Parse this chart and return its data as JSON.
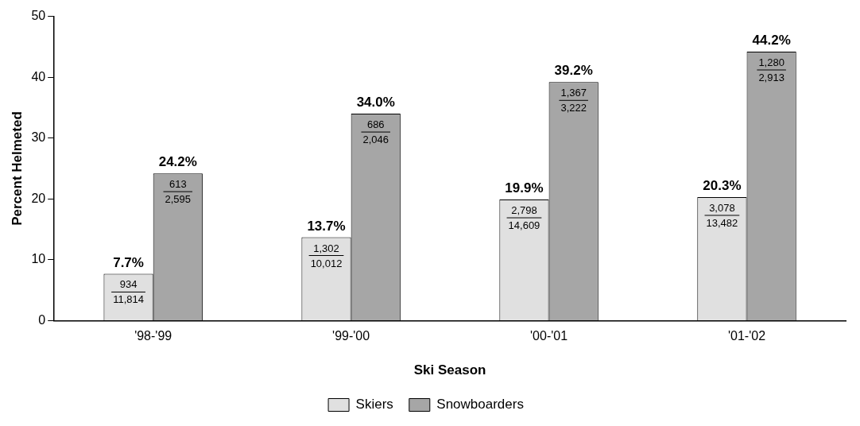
{
  "chart_data": {
    "type": "bar",
    "xlabel": "Ski Season",
    "ylabel": "Percent Helmeted",
    "categories": [
      "'98-'99",
      "'99-'00",
      "'00-'01",
      "'01-'02"
    ],
    "series": [
      {
        "name": "Skiers",
        "color": "#e0e0e0",
        "values": [
          7.7,
          13.7,
          19.9,
          20.3
        ],
        "value_labels": [
          "7.7%",
          "13.7%",
          "19.9%",
          "20.3%"
        ]
      },
      {
        "name": "Snowboarders",
        "color": "#a6a6a6",
        "values": [
          24.2,
          34.0,
          39.2,
          44.2
        ],
        "value_labels": [
          "24.2%",
          "34.0%",
          "39.2%",
          "44.2%"
        ]
      }
    ],
    "ylim": [
      0,
      50
    ],
    "yticks": [
      0,
      10,
      20,
      30,
      40,
      50
    ],
    "grid": false,
    "legend": "bottom",
    "annotations": [
      {
        "text": "934",
        "x": "'98-'99",
        "y": 7.7
      },
      {
        "text": "11,814",
        "x": "'98-'99",
        "y": 7.7
      },
      {
        "text": "613",
        "x": "'98-'99",
        "y": 24.2
      },
      {
        "text": "2,595",
        "x": "'98-'99",
        "y": 24.2
      },
      {
        "text": "1,302",
        "x": "'99-'00",
        "y": 13.7
      },
      {
        "text": "10,012",
        "x": "'99-'00",
        "y": 13.7
      },
      {
        "text": "686",
        "x": "'99-'00",
        "y": 34.0
      },
      {
        "text": "2,046",
        "x": "'99-'00",
        "y": 34.0
      },
      {
        "text": "2,798",
        "x": "'00-'01",
        "y": 19.9
      },
      {
        "text": "14,609",
        "x": "'00-'01",
        "y": 19.9
      },
      {
        "text": "1,367",
        "x": "'00-'01",
        "y": 39.2
      },
      {
        "text": "3,222",
        "x": "'00-'01",
        "y": 39.2
      },
      {
        "text": "3,078",
        "x": "'01-'02",
        "y": 20.3
      },
      {
        "text": "13,482",
        "x": "'01-'02",
        "y": 20.3
      },
      {
        "text": "1,280",
        "x": "'01-'02",
        "y": 44.2
      },
      {
        "text": "2,913",
        "x": "'01-'02",
        "y": 44.2
      }
    ]
  }
}
